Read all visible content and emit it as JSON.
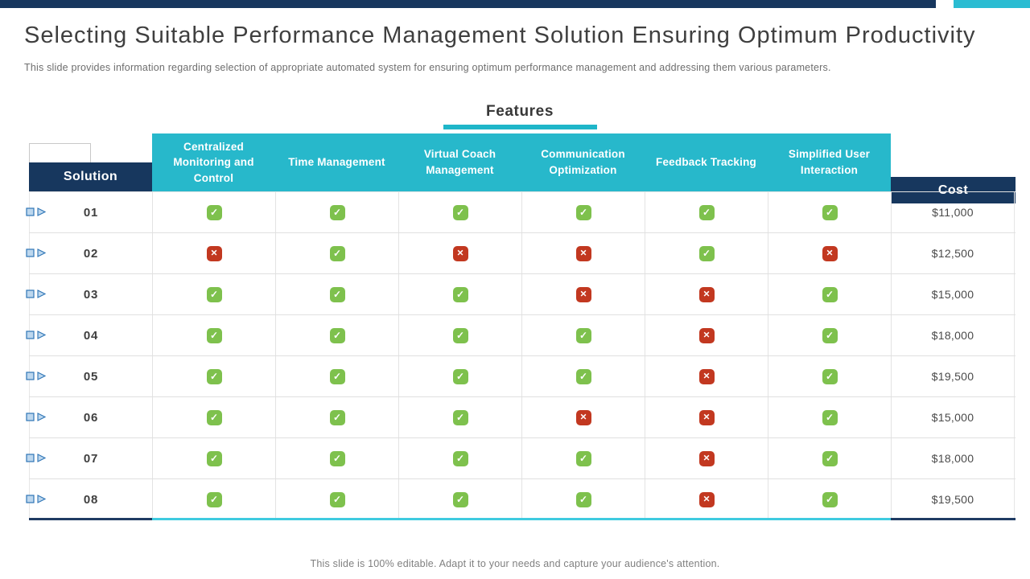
{
  "title": "Selecting Suitable Performance Management Solution Ensuring Optimum Productivity",
  "subtitle": "This slide provides information regarding selection of appropriate automated system for ensuring optimum performance management and addressing them various parameters.",
  "features_label": "Features",
  "footer": "This slide is 100% editable. Adapt it to your needs and capture your audience's attention.",
  "icons": {
    "check": "✓",
    "cross": "✕"
  },
  "colors": {
    "navy": "#17375E",
    "teal_band": "#27B8CB",
    "teal_topbar": "#2BBCD2",
    "teal_underline": "#1FB6C9",
    "teal_bottom_line": "#3FCBE0",
    "green_check": "#7EC14D",
    "red_cross": "#C23820",
    "marker_blue_border": "#2E75B6",
    "marker_blue_fill": "#BDD7EE"
  },
  "table": {
    "solution_header": "Solution",
    "cost_header": "Cost",
    "feature_columns": [
      "Centralized Monitoring and Control",
      "Time Management",
      "Virtual Coach Management",
      "Communication Optimization",
      "Feedback Tracking",
      "Simplified User Interaction"
    ],
    "rows": [
      {
        "solution": "01",
        "features": [
          true,
          true,
          true,
          true,
          true,
          true
        ],
        "cost": "$11,000"
      },
      {
        "solution": "02",
        "features": [
          false,
          true,
          false,
          false,
          true,
          false
        ],
        "cost": "$12,500"
      },
      {
        "solution": "03",
        "features": [
          true,
          true,
          true,
          false,
          false,
          true
        ],
        "cost": "$15,000"
      },
      {
        "solution": "04",
        "features": [
          true,
          true,
          true,
          true,
          false,
          true
        ],
        "cost": "$18,000"
      },
      {
        "solution": "05",
        "features": [
          true,
          true,
          true,
          true,
          false,
          true
        ],
        "cost": "$19,500"
      },
      {
        "solution": "06",
        "features": [
          true,
          true,
          true,
          false,
          false,
          true
        ],
        "cost": "$15,000"
      },
      {
        "solution": "07",
        "features": [
          true,
          true,
          true,
          true,
          false,
          true
        ],
        "cost": "$18,000"
      },
      {
        "solution": "08",
        "features": [
          true,
          true,
          true,
          true,
          false,
          true
        ],
        "cost": "$19,500"
      }
    ]
  }
}
